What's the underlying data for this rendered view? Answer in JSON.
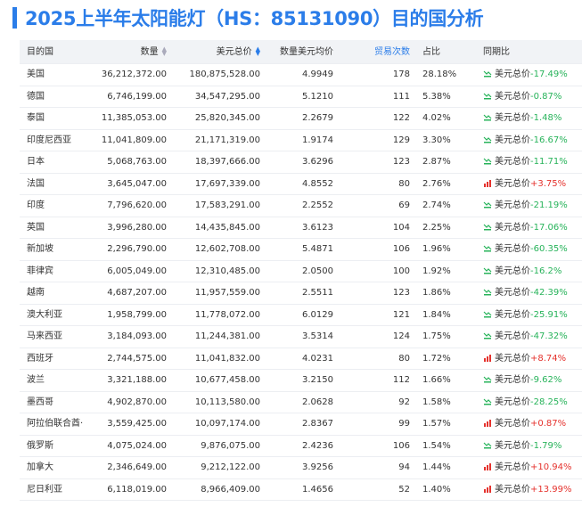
{
  "header": {
    "title": "2025上半年太阳能灯（HS：85131090）目的国分析"
  },
  "table": {
    "columns": [
      "目的国",
      "数量",
      "美元总价",
      "数量美元均价",
      "贸易次数",
      "占比",
      "同期比"
    ],
    "rows": [
      [
        "美国",
        "36,212,372.00",
        "180,875,528.00",
        "4.9949",
        "178",
        "28.18%",
        "美元总价",
        "-17.49%"
      ],
      [
        "德国",
        "6,746,199.00",
        "34,547,295.00",
        "5.1210",
        "111",
        "5.38%",
        "美元总价",
        "-0.87%"
      ],
      [
        "泰国",
        "11,385,053.00",
        "25,820,345.00",
        "2.2679",
        "122",
        "4.02%",
        "美元总价",
        "-1.48%"
      ],
      [
        "印度尼西亚",
        "11,041,809.00",
        "21,171,319.00",
        "1.9174",
        "129",
        "3.30%",
        "美元总价",
        "-16.67%"
      ],
      [
        "日本",
        "5,068,763.00",
        "18,397,666.00",
        "3.6296",
        "123",
        "2.87%",
        "美元总价",
        "-11.71%"
      ],
      [
        "法国",
        "3,645,047.00",
        "17,697,339.00",
        "4.8552",
        "80",
        "2.76%",
        "美元总价",
        "+3.75%"
      ],
      [
        "印度",
        "7,796,620.00",
        "17,583,291.00",
        "2.2552",
        "69",
        "2.74%",
        "美元总价",
        "-21.19%"
      ],
      [
        "英国",
        "3,996,280.00",
        "14,435,845.00",
        "3.6123",
        "104",
        "2.25%",
        "美元总价",
        "-17.06%"
      ],
      [
        "新加坡",
        "2,296,790.00",
        "12,602,708.00",
        "5.4871",
        "106",
        "1.96%",
        "美元总价",
        "-60.35%"
      ],
      [
        "菲律宾",
        "6,005,049.00",
        "12,310,485.00",
        "2.0500",
        "100",
        "1.92%",
        "美元总价",
        "-16.2%"
      ],
      [
        "越南",
        "4,687,207.00",
        "11,957,559.00",
        "2.5511",
        "123",
        "1.86%",
        "美元总价",
        "-42.39%"
      ],
      [
        "澳大利亚",
        "1,958,799.00",
        "11,778,072.00",
        "6.0129",
        "121",
        "1.84%",
        "美元总价",
        "-25.91%"
      ],
      [
        "马来西亚",
        "3,184,093.00",
        "11,244,381.00",
        "3.5314",
        "124",
        "1.75%",
        "美元总价",
        "-47.32%"
      ],
      [
        "西班牙",
        "2,744,575.00",
        "11,041,832.00",
        "4.0231",
        "80",
        "1.72%",
        "美元总价",
        "+8.74%"
      ],
      [
        "波兰",
        "3,321,188.00",
        "10,677,458.00",
        "3.2150",
        "112",
        "1.66%",
        "美元总价",
        "-9.62%"
      ],
      [
        "墨西哥",
        "4,902,870.00",
        "10,113,580.00",
        "2.0628",
        "92",
        "1.58%",
        "美元总价",
        "-28.25%"
      ],
      [
        "阿拉伯联合酋·",
        "3,559,425.00",
        "10,097,174.00",
        "2.8367",
        "99",
        "1.57%",
        "美元总价",
        "+0.87%"
      ],
      [
        "俄罗斯",
        "4,075,024.00",
        "9,876,075.00",
        "2.4236",
        "106",
        "1.54%",
        "美元总价",
        "-1.79%"
      ],
      [
        "加拿大",
        "2,346,649.00",
        "9,212,122.00",
        "3.9256",
        "94",
        "1.44%",
        "美元总价",
        "+10.94%"
      ],
      [
        "尼日利亚",
        "6,118,019.00",
        "8,966,409.00",
        "1.4656",
        "52",
        "1.40%",
        "美元总价",
        "+13.99%"
      ]
    ]
  }
}
